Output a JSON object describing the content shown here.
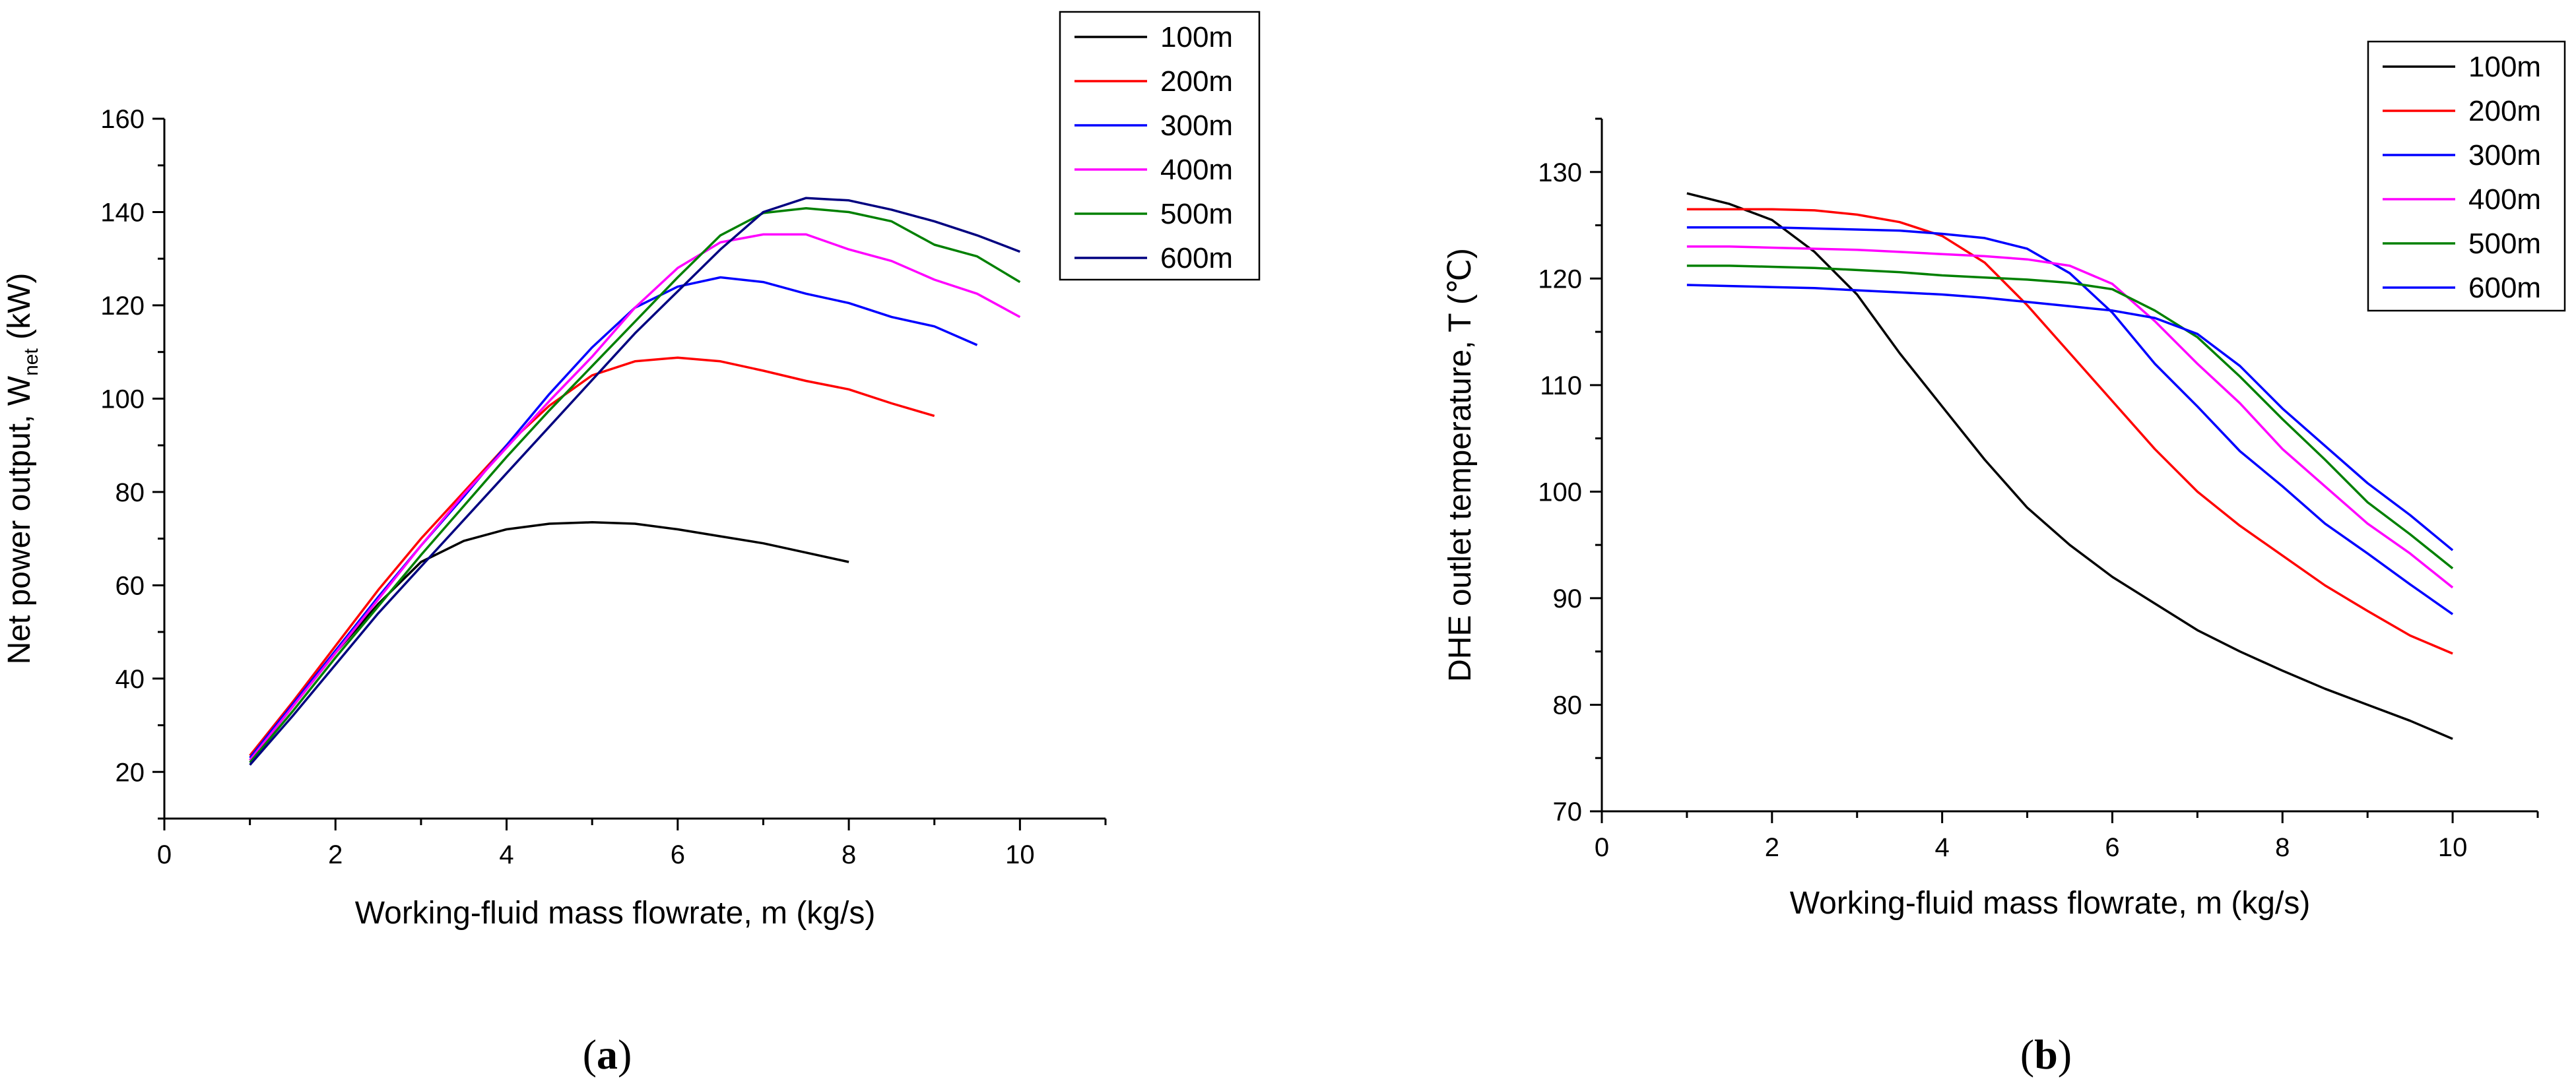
{
  "chart_data": [
    {
      "panel_label": {
        "open": "(",
        "letter": "a",
        "close": ")"
      },
      "type": "line",
      "xlabel": "Working-fluid mass flowrate, m (kg/s)",
      "ylabel": {
        "main": "Net power output, W",
        "sub": "net",
        "unit": " (kW)"
      },
      "xlim": [
        0,
        11
      ],
      "ylim": [
        10,
        160
      ],
      "xticks": [
        0,
        2,
        4,
        6,
        8,
        10
      ],
      "yticks": [
        20,
        40,
        60,
        80,
        100,
        120,
        140,
        160
      ],
      "legend_position": "top-right",
      "series": [
        {
          "name": "100m",
          "color": "#000000",
          "x": [
            1,
            1.5,
            2,
            2.5,
            3,
            3.5,
            4,
            4.5,
            5,
            5.5,
            6,
            6.5,
            7,
            7.5,
            8
          ],
          "y": [
            22.5,
            34,
            45.5,
            56,
            65,
            69.5,
            72,
            73.2,
            73.5,
            73.2,
            72,
            70.5,
            69,
            67,
            65
          ]
        },
        {
          "name": "200m",
          "color": "#ff0000",
          "x": [
            1,
            1.5,
            2,
            2.5,
            3,
            3.5,
            4,
            4.5,
            5,
            5.5,
            6,
            6.5,
            7,
            7.5,
            8,
            8.5,
            9
          ],
          "y": [
            23.5,
            35,
            47,
            59,
            70,
            80,
            90,
            98.5,
            105,
            108,
            108.8,
            108,
            106,
            103.8,
            102,
            99,
            96.3
          ]
        },
        {
          "name": "300m",
          "color": "#0000ff",
          "x": [
            1,
            1.5,
            2,
            2.5,
            3,
            3.5,
            4,
            4.5,
            5,
            5.5,
            6,
            6.5,
            7,
            7.5,
            8,
            8.5,
            9,
            9.5
          ],
          "y": [
            23,
            34.5,
            46,
            57.5,
            68.5,
            79,
            90,
            101,
            111,
            119.5,
            124,
            126,
            125,
            122.5,
            120.5,
            117.5,
            115.5,
            111.5
          ]
        },
        {
          "name": "400m",
          "color": "#ff00ff",
          "x": [
            1,
            1.5,
            2,
            2.5,
            3,
            3.5,
            4,
            4.5,
            5,
            5.5,
            6,
            6.5,
            7,
            7.5,
            8,
            8.5,
            9,
            9.5,
            10
          ],
          "y": [
            22.5,
            34,
            45.5,
            57,
            68.5,
            79.5,
            89.5,
            99.5,
            109,
            119.5,
            128,
            133.5,
            135.2,
            135.2,
            132,
            129.5,
            125.5,
            122.5,
            117.5
          ]
        },
        {
          "name": "500m",
          "color": "#008000",
          "x": [
            1,
            1.5,
            2,
            2.5,
            3,
            3.5,
            4,
            4.5,
            5,
            5.5,
            6,
            6.5,
            7,
            7.5,
            8,
            8.5,
            9,
            9.5,
            10
          ],
          "y": [
            22,
            33,
            44.5,
            55.5,
            66.5,
            77,
            87.5,
            97.5,
            107,
            116.5,
            126,
            135,
            139.8,
            140.8,
            140,
            138,
            133,
            130.5,
            125
          ]
        },
        {
          "name": "600m",
          "color": "#000080",
          "x": [
            1,
            1.5,
            2,
            2.5,
            3,
            3.5,
            4,
            4.5,
            5,
            5.5,
            6,
            6.5,
            7,
            7.5,
            8,
            8.5,
            9,
            9.5,
            10
          ],
          "y": [
            21.5,
            32,
            43,
            54,
            64,
            74,
            84,
            94,
            104,
            114,
            123,
            132,
            140,
            143,
            142.5,
            140.5,
            138,
            135,
            131.5
          ]
        }
      ]
    },
    {
      "panel_label": {
        "open": "(",
        "letter": "b",
        "close": ")"
      },
      "type": "line",
      "xlabel": "Working-fluid mass flowrate, m (kg/s)",
      "ylabel": "DHE outlet temperature, T (℃)",
      "xlim": [
        0,
        11
      ],
      "ylim": [
        70,
        135
      ],
      "xticks": [
        0,
        2,
        4,
        6,
        8,
        10
      ],
      "yticks": [
        70,
        80,
        90,
        100,
        110,
        120,
        130
      ],
      "legend_position": "top-right",
      "series": [
        {
          "name": "100m",
          "color": "#000000",
          "x": [
            1,
            1.5,
            2,
            2.5,
            3,
            3.5,
            4,
            4.5,
            5,
            5.5,
            6,
            6.5,
            7,
            7.5,
            8,
            8.5,
            9,
            9.5,
            10
          ],
          "y": [
            128,
            127,
            125.5,
            122.5,
            118.5,
            113,
            108,
            103,
            98.5,
            95,
            92,
            89.5,
            87,
            85,
            83.2,
            81.5,
            80,
            78.5,
            76.8
          ]
        },
        {
          "name": "200m",
          "color": "#ff0000",
          "x": [
            1,
            1.5,
            2,
            2.5,
            3,
            3.5,
            4,
            4.5,
            5,
            5.5,
            6,
            6.5,
            7,
            7.5,
            8,
            8.5,
            9,
            9.5,
            10
          ],
          "y": [
            126.5,
            126.5,
            126.5,
            126.4,
            126,
            125.3,
            124,
            121.5,
            117.5,
            113,
            108.5,
            104,
            100,
            96.8,
            94,
            91.2,
            88.8,
            86.5,
            84.8
          ]
        },
        {
          "name": "300m",
          "color": "#0000ff",
          "x": [
            1,
            1.5,
            2,
            2.5,
            3,
            3.5,
            4,
            4.5,
            5,
            5.5,
            6,
            6.5,
            7,
            7.5,
            8,
            8.5,
            9,
            9.5,
            10
          ],
          "y": [
            124.8,
            124.8,
            124.8,
            124.7,
            124.6,
            124.5,
            124.2,
            123.8,
            122.8,
            120.5,
            116.8,
            112,
            108,
            103.8,
            100.5,
            97,
            94.2,
            91.3,
            88.5
          ]
        },
        {
          "name": "400m",
          "color": "#ff00ff",
          "x": [
            1,
            1.5,
            2,
            2.5,
            3,
            3.5,
            4,
            4.5,
            5,
            5.5,
            6,
            6.5,
            7,
            7.5,
            8,
            8.5,
            9,
            9.5,
            10
          ],
          "y": [
            123,
            123,
            122.9,
            122.8,
            122.7,
            122.5,
            122.3,
            122.1,
            121.8,
            121.2,
            119.5,
            116,
            112,
            108.3,
            104,
            100.5,
            97,
            94.2,
            91
          ]
        },
        {
          "name": "500m",
          "color": "#008000",
          "x": [
            1,
            1.5,
            2,
            2.5,
            3,
            3.5,
            4,
            4.5,
            5,
            5.5,
            6,
            6.5,
            7,
            7.5,
            8,
            8.5,
            9,
            9.5,
            10
          ],
          "y": [
            121.2,
            121.2,
            121.1,
            121,
            120.8,
            120.6,
            120.3,
            120.1,
            119.9,
            119.6,
            119,
            117,
            114.5,
            110.8,
            106.8,
            103,
            99,
            96,
            92.8
          ]
        },
        {
          "name": "600m",
          "color": "#0000ff",
          "x": [
            1,
            1.5,
            2,
            2.5,
            3,
            3.5,
            4,
            4.5,
            5,
            5.5,
            6,
            6.5,
            7,
            7.5,
            8,
            8.5,
            9,
            9.5,
            10
          ],
          "y": [
            119.4,
            119.3,
            119.2,
            119.1,
            118.9,
            118.7,
            118.5,
            118.2,
            117.8,
            117.4,
            117,
            116.3,
            114.8,
            111.8,
            107.8,
            104.3,
            100.8,
            97.8,
            94.5
          ]
        }
      ]
    }
  ]
}
